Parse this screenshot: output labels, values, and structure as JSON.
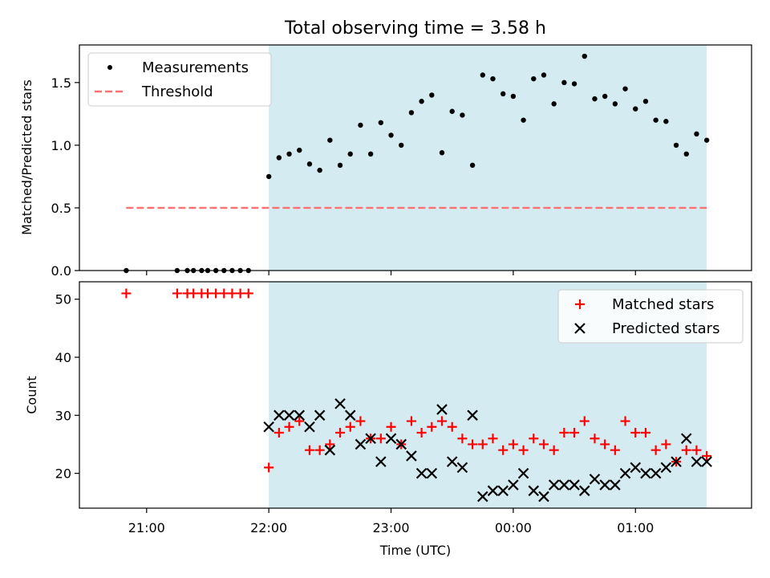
{
  "chart_data": {
    "title": "Total observing time = 3.58 h",
    "xlabel": "Time (UTC)",
    "x_ticks": [
      "21:00",
      "22:00",
      "23:00",
      "00:00",
      "01:00"
    ],
    "observing_window": {
      "start": "22:00",
      "end": "01:35",
      "color": "#add8e6"
    },
    "panels": [
      {
        "type": "scatter",
        "ylabel": "Matched/Predicted stars",
        "ylim": [
          0.0,
          1.8
        ],
        "y_ticks": [
          "0.0",
          "0.5",
          "1.0",
          "1.5"
        ],
        "legend_position": "upper-left",
        "series": [
          {
            "name": "Measurements",
            "marker": "dot",
            "color": "#000000",
            "x": [
              "20:50",
              "21:15",
              "21:20",
              "21:23",
              "21:27",
              "21:30",
              "21:34",
              "21:38",
              "21:42",
              "21:46",
              "21:50",
              "22:00",
              "22:05",
              "22:10",
              "22:15",
              "22:20",
              "22:25",
              "22:30",
              "22:35",
              "22:40",
              "22:45",
              "22:50",
              "22:55",
              "23:00",
              "23:05",
              "23:10",
              "23:15",
              "23:20",
              "23:25",
              "23:30",
              "23:35",
              "23:40",
              "23:45",
              "23:50",
              "23:55",
              "00:00",
              "00:05",
              "00:10",
              "00:15",
              "00:20",
              "00:25",
              "00:30",
              "00:35",
              "00:40",
              "00:45",
              "00:50",
              "00:55",
              "01:00",
              "01:05",
              "01:10",
              "01:15",
              "01:20",
              "01:25",
              "01:30",
              "01:35"
            ],
            "y": [
              0.0,
              0.0,
              0.0,
              0.0,
              0.0,
              0.0,
              0.0,
              0.0,
              0.0,
              0.0,
              0.0,
              0.75,
              0.9,
              0.93,
              0.96,
              0.85,
              0.8,
              1.04,
              0.84,
              0.93,
              1.16,
              0.93,
              1.18,
              1.08,
              1.0,
              1.26,
              1.35,
              1.4,
              0.94,
              1.27,
              1.24,
              0.84,
              1.56,
              1.53,
              1.41,
              1.39,
              1.2,
              1.53,
              1.56,
              1.33,
              1.5,
              1.49,
              1.71,
              1.37,
              1.39,
              1.33,
              1.45,
              1.29,
              1.35,
              1.2,
              1.19,
              1.0,
              0.93,
              1.09,
              1.04
            ]
          },
          {
            "name": "Threshold",
            "marker": "dashed-line",
            "color": "#ff7070",
            "x": [
              "20:50",
              "01:35"
            ],
            "y": [
              0.5,
              0.5
            ]
          }
        ]
      },
      {
        "type": "scatter",
        "ylabel": "Count",
        "ylim": [
          14,
          53
        ],
        "y_ticks": [
          "20",
          "30",
          "40",
          "50"
        ],
        "legend_position": "upper-right",
        "series": [
          {
            "name": "Matched stars",
            "marker": "plus",
            "color": "#ff0000",
            "x": [
              "20:50",
              "21:15",
              "21:20",
              "21:23",
              "21:27",
              "21:30",
              "21:34",
              "21:38",
              "21:42",
              "21:46",
              "21:50",
              "22:00",
              "22:05",
              "22:10",
              "22:15",
              "22:20",
              "22:25",
              "22:30",
              "22:35",
              "22:40",
              "22:45",
              "22:50",
              "22:55",
              "23:00",
              "23:05",
              "23:10",
              "23:15",
              "23:20",
              "23:25",
              "23:30",
              "23:35",
              "23:40",
              "23:45",
              "23:50",
              "23:55",
              "00:00",
              "00:05",
              "00:10",
              "00:15",
              "00:20",
              "00:25",
              "00:30",
              "00:35",
              "00:40",
              "00:45",
              "00:50",
              "00:55",
              "01:00",
              "01:05",
              "01:10",
              "01:15",
              "01:20",
              "01:25",
              "01:30",
              "01:35"
            ],
            "y": [
              51,
              51,
              51,
              51,
              51,
              51,
              51,
              51,
              51,
              51,
              51,
              21,
              27,
              28,
              29,
              24,
              24,
              25,
              27,
              28,
              29,
              26,
              26,
              28,
              25,
              29,
              27,
              28,
              29,
              28,
              26,
              25,
              25,
              26,
              24,
              25,
              24,
              26,
              25,
              24,
              27,
              27,
              29,
              26,
              25,
              24,
              29,
              27,
              27,
              24,
              25,
              22,
              24,
              24,
              23
            ]
          },
          {
            "name": "Predicted stars",
            "marker": "x",
            "color": "#000000",
            "x": [
              "22:00",
              "22:05",
              "22:10",
              "22:15",
              "22:20",
              "22:25",
              "22:30",
              "22:35",
              "22:40",
              "22:45",
              "22:50",
              "22:55",
              "23:00",
              "23:05",
              "23:10",
              "23:15",
              "23:20",
              "23:25",
              "23:30",
              "23:35",
              "23:40",
              "23:45",
              "23:50",
              "23:55",
              "00:00",
              "00:05",
              "00:10",
              "00:15",
              "00:20",
              "00:25",
              "00:30",
              "00:35",
              "00:40",
              "00:45",
              "00:50",
              "00:55",
              "01:00",
              "01:05",
              "01:10",
              "01:15",
              "01:20",
              "01:25",
              "01:30",
              "01:35"
            ],
            "y": [
              28,
              30,
              30,
              30,
              28,
              30,
              24,
              32,
              30,
              25,
              26,
              22,
              26,
              25,
              23,
              20,
              20,
              31,
              22,
              21,
              30,
              16,
              17,
              17,
              18,
              20,
              17,
              16,
              18,
              18,
              18,
              17,
              19,
              18,
              18,
              20,
              21,
              20,
              20,
              21,
              22,
              26,
              22,
              22
            ]
          }
        ]
      }
    ]
  }
}
